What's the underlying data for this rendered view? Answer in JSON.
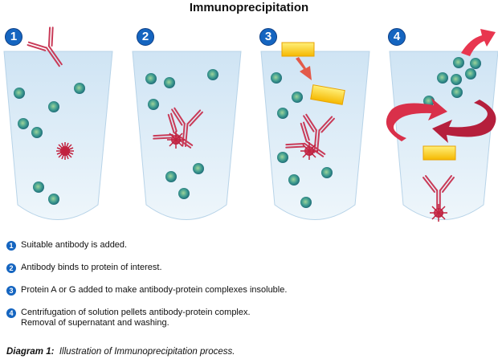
{
  "title": "Immunoprecipitation",
  "panel_numbers": [
    "1",
    "2",
    "3",
    "4"
  ],
  "colors": {
    "badge": "#1565c0",
    "tube": "#dcecf7",
    "antibody": "#d9536d",
    "protein_of_interest": "#c1223f",
    "bead": "#3a8f8f",
    "protein_ag": "#ffd84a",
    "arrow": "#d9304a"
  },
  "steps": [
    {
      "number": "1",
      "lines": [
        "Suitable antibody is added."
      ]
    },
    {
      "number": "2",
      "lines": [
        "Antibody binds to protein of interest."
      ]
    },
    {
      "number": "3",
      "lines": [
        "Protein A or G added to make antibody-protein complexes insoluble."
      ]
    },
    {
      "number": "4",
      "lines": [
        "Centrifugation of solution pellets antibody-protein complex.",
        "Removal of supernatant and washing."
      ]
    }
  ],
  "caption": {
    "label": "Diagram 1:",
    "text": "Illustration of Immunoprecipitation process."
  }
}
